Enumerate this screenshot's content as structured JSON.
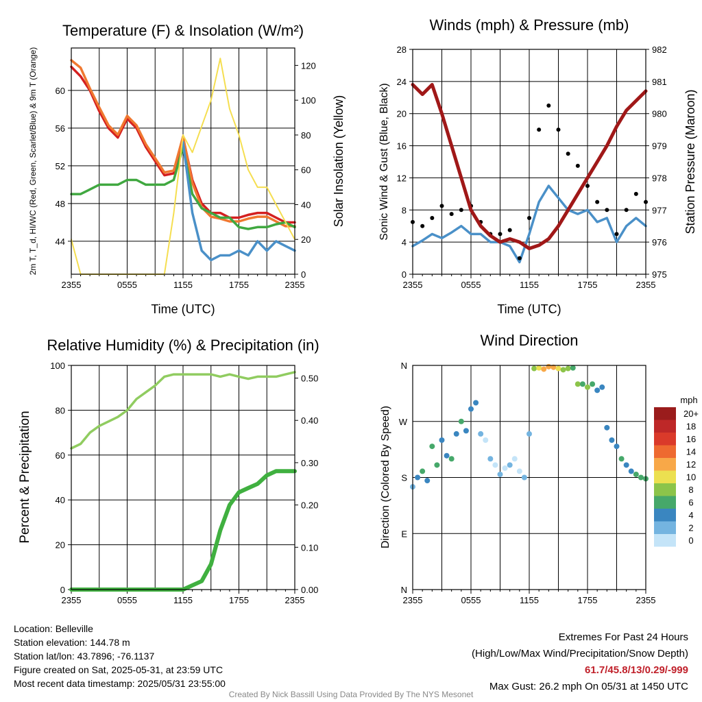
{
  "chart_data": [
    {
      "type": "line",
      "title": "Temperature (F) & Insolation (W/m²)",
      "xlabel": "Time (UTC)",
      "ylabel": "2m T, T_d, HI/WC (Red, Green, Scarlet/Blue) & 9m T (Orange)",
      "ylabel_right": "Solar Insolation (Yellow)",
      "x_ticks": [
        "2355",
        "0555",
        "1155",
        "1755",
        "2355"
      ],
      "ylim": [
        40.5,
        64.5
      ],
      "y_ticks": [
        44,
        48,
        52,
        56,
        60
      ],
      "ylim_right": [
        0,
        130
      ],
      "y_ticks_right": [
        0,
        20,
        40,
        60,
        80,
        100,
        120
      ],
      "x": [
        0,
        1,
        2,
        3,
        4,
        5,
        6,
        7,
        8,
        9,
        10,
        11,
        12,
        13,
        14,
        15,
        16,
        17,
        18,
        19,
        20,
        21,
        22,
        23,
        24
      ],
      "series": [
        {
          "name": "2m T",
          "color": "#d42020",
          "values": [
            62.5,
            61.5,
            60,
            57.8,
            56,
            55,
            57,
            56,
            54,
            52.5,
            51,
            51.2,
            55,
            50.5,
            48,
            47,
            47,
            46.5,
            46.5,
            46.8,
            47,
            47,
            46.5,
            46,
            46
          ]
        },
        {
          "name": "9m T",
          "color": "#f07830",
          "values": [
            63.2,
            62.4,
            60.2,
            58.2,
            56.3,
            55.3,
            57.3,
            56.3,
            54.3,
            52.8,
            51.3,
            51.5,
            55.1,
            50.2,
            47.6,
            46.6,
            46.4,
            46.1,
            46.1,
            46.4,
            46.6,
            46.6,
            46.1,
            45.6,
            45.6
          ]
        },
        {
          "name": "Td",
          "color": "#40a840",
          "values": [
            49,
            49,
            49.5,
            50,
            50,
            50,
            50.5,
            50.5,
            50,
            50,
            50,
            50.5,
            54,
            49,
            47.5,
            47,
            46.5,
            46.5,
            45.5,
            45.3,
            45.5,
            45.5,
            45.8,
            46,
            45.5
          ]
        },
        {
          "name": "HI/WC",
          "color": "#4a90c8",
          "values": [
            null,
            null,
            null,
            null,
            null,
            null,
            null,
            null,
            null,
            null,
            null,
            null,
            54.5,
            47,
            43,
            42,
            42.5,
            42.5,
            43,
            42.5,
            44,
            43,
            44,
            43.5,
            43
          ]
        },
        {
          "name": "Solar Insolation",
          "color": "#f5de50",
          "axis": "right",
          "values": [
            20,
            0,
            0,
            0,
            0,
            0,
            0,
            0,
            0,
            0,
            0,
            35,
            80,
            70,
            85,
            100,
            124,
            95,
            80,
            60,
            50,
            50,
            40,
            30,
            20
          ]
        }
      ]
    },
    {
      "type": "line",
      "title": "Winds (mph) & Pressure (mb)",
      "xlabel": "Time (UTC)",
      "ylabel": "Sonic Wind & Gust (Blue, Black)",
      "ylabel_right": "Station Pressure (Maroon)",
      "x_ticks": [
        "2355",
        "0555",
        "1155",
        "1755",
        "2355"
      ],
      "ylim": [
        0,
        28
      ],
      "y_ticks": [
        0,
        4,
        8,
        12,
        16,
        20,
        24,
        28
      ],
      "ylim_right": [
        975,
        982
      ],
      "y_ticks_right": [
        975,
        976,
        977,
        978,
        979,
        980,
        981,
        982
      ],
      "x": [
        0,
        1,
        2,
        3,
        4,
        5,
        6,
        7,
        8,
        9,
        10,
        11,
        12,
        13,
        14,
        15,
        16,
        17,
        18,
        19,
        20,
        21,
        22,
        23,
        24
      ],
      "series": [
        {
          "name": "Sonic Wind",
          "color": "#4a90c8",
          "values": [
            3.5,
            4.2,
            5,
            4.5,
            5.2,
            6,
            5,
            5,
            4,
            4,
            3.5,
            1.5,
            5,
            9,
            11,
            9.5,
            8,
            7.5,
            8,
            6.5,
            7,
            4,
            6,
            7,
            6
          ]
        },
        {
          "name": "Gust",
          "color": "#000000",
          "style": "dots",
          "values": [
            6.5,
            6,
            7,
            8.5,
            7.5,
            8,
            8.5,
            6.5,
            5,
            5,
            5.5,
            2,
            7,
            18,
            21,
            18,
            15,
            13.5,
            11,
            9,
            8,
            5,
            8,
            10,
            9
          ]
        },
        {
          "name": "Station Pressure",
          "color": "#a01818",
          "axis": "right",
          "values": [
            980.9,
            980.6,
            980.9,
            980,
            979,
            978,
            977,
            976.5,
            976.2,
            976,
            976.1,
            976,
            975.8,
            975.9,
            976.1,
            976.5,
            977,
            977.5,
            978,
            978.5,
            979,
            979.6,
            980.1,
            980.4,
            980.7
          ]
        }
      ]
    },
    {
      "type": "line",
      "title": "Relative Humidity (%) & Precipitation (in)",
      "ylabel": "Percent & Precipitation",
      "x_ticks": [
        "2355",
        "0555",
        "1155",
        "1755",
        "2355"
      ],
      "ylim": [
        0,
        100
      ],
      "y_ticks": [
        0,
        20,
        40,
        60,
        80,
        100
      ],
      "ylim_right": [
        0,
        0.53
      ],
      "y_ticks_right": [
        "0.00",
        "0.10",
        "0.20",
        "0.30",
        "0.40",
        "0.50"
      ],
      "x": [
        0,
        1,
        2,
        3,
        4,
        5,
        6,
        7,
        8,
        9,
        10,
        11,
        12,
        13,
        14,
        15,
        16,
        17,
        18,
        19,
        20,
        21,
        22,
        23,
        24
      ],
      "series": [
        {
          "name": "Relative Humidity",
          "color": "#90cc60",
          "values": [
            63,
            65,
            70,
            73,
            75,
            77,
            80,
            85,
            88,
            91,
            95,
            96,
            96,
            96,
            96,
            96,
            95,
            96,
            95,
            94,
            95,
            95,
            95,
            96,
            97
          ]
        },
        {
          "name": "Precipitation",
          "color": "#40b040",
          "axis": "right",
          "values": [
            0,
            0,
            0,
            0,
            0,
            0,
            0,
            0,
            0,
            0,
            0,
            0,
            0,
            0.01,
            0.02,
            0.06,
            0.14,
            0.2,
            0.23,
            0.24,
            0.25,
            0.27,
            0.28,
            0.28,
            0.28
          ]
        }
      ]
    },
    {
      "type": "scatter",
      "title": "Wind Direction",
      "ylabel": "Direction (Colored By Speed)",
      "x_ticks": [
        "2355",
        "0555",
        "1155",
        "1755",
        "2355"
      ],
      "y_ticks": [
        "N",
        "E",
        "S",
        "W",
        "N"
      ],
      "ylim": [
        0,
        360
      ],
      "legend_title": "mph",
      "legend_labels": [
        "20+",
        "18",
        "16",
        "14",
        "12",
        "10",
        "8",
        "6",
        "4",
        "2",
        "0"
      ],
      "legend_colors": [
        "#9a1c1c",
        "#be2828",
        "#da3a2a",
        "#ee6a30",
        "#f8a848",
        "#ece050",
        "#8cc44a",
        "#46a86a",
        "#3a86c0",
        "#74b4e0",
        "#c4e4f8"
      ],
      "x": [
        0,
        0.5,
        1,
        1.5,
        2,
        2.5,
        3,
        3.5,
        4,
        4.5,
        5,
        5.5,
        6,
        6.5,
        7,
        7.5,
        8,
        8.5,
        9,
        9.5,
        10,
        10.5,
        11,
        11.5,
        12,
        12.5,
        13,
        13.5,
        14,
        14.5,
        15,
        15.5,
        16,
        16.5,
        17,
        17.5,
        18,
        18.5,
        19,
        19.5,
        20,
        20.5,
        21,
        21.5,
        22,
        22.5,
        23,
        23.5,
        24
      ],
      "values": [
        165,
        180,
        190,
        175,
        230,
        200,
        240,
        215,
        210,
        250,
        270,
        255,
        290,
        300,
        250,
        240,
        210,
        200,
        185,
        195,
        200,
        210,
        190,
        180,
        250,
        355,
        356,
        354,
        358,
        357,
        355,
        353,
        355,
        356,
        330,
        330,
        325,
        330,
        320,
        325,
        260,
        240,
        230,
        210,
        200,
        190,
        185,
        180,
        178
      ],
      "speeds": [
        3,
        5,
        6,
        4,
        7,
        6,
        5,
        4,
        7,
        5,
        6,
        4,
        5,
        5,
        2,
        1,
        2,
        1,
        2,
        1,
        2,
        1,
        1,
        2,
        3,
        9,
        11,
        12,
        13,
        12,
        11,
        9,
        8,
        7,
        8,
        7,
        9,
        6,
        5,
        5,
        4,
        4,
        5,
        6,
        4,
        5,
        6,
        7,
        6
      ]
    }
  ],
  "info": {
    "location": "Location: Belleville",
    "elevation": "Station elevation: 144.78 m",
    "latlon": "Station lat/lon: 43.7896; -76.1137",
    "created": "Figure created on Sat, 2025-05-31, at 23:59 UTC",
    "recent": "Most recent data timestamp: 2025/05/31 23:55:00"
  },
  "extremes": {
    "title": "Extremes For Past 24 Hours",
    "subtitle": "(High/Low/Max Wind/Precipitation/Snow Depth)",
    "values": "61.7/45.8/13/0.29/-999",
    "gust": "Max Gust: 26.2 mph On 05/31 at 1450 UTC"
  },
  "credit": "Created By Nick Bassill Using Data Provided By The NYS Mesonet"
}
